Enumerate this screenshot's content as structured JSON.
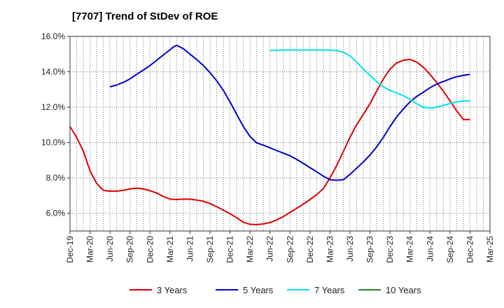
{
  "chart_data": {
    "type": "line",
    "title": "[7707]  Trend of StDev of ROE",
    "xlabel": "",
    "ylabel": "",
    "x_tick_labels": [
      "Dec-19",
      "Mar-20",
      "Jun-20",
      "Sep-20",
      "Dec-20",
      "Mar-21",
      "Jun-21",
      "Sep-21",
      "Dec-21",
      "Mar-22",
      "Jun-22",
      "Sep-22",
      "Dec-22",
      "Mar-23",
      "Jun-23",
      "Sep-23",
      "Dec-23",
      "Mar-24",
      "Jun-24",
      "Sep-24",
      "Dec-24",
      "Mar-25"
    ],
    "y_tick_labels": [
      "6.0%",
      "8.0%",
      "10.0%",
      "12.0%",
      "14.0%",
      "16.0%"
    ],
    "y_ticks": [
      6,
      8,
      10,
      12,
      14,
      16
    ],
    "ylim": [
      5,
      16
    ],
    "x_range": [
      0,
      21
    ],
    "grid": true,
    "legend_position": "bottom",
    "series": [
      {
        "name": "3 Years",
        "color": "#dd0000",
        "x": [
          0,
          0.33,
          0.67,
          1,
          1.33,
          1.67,
          2,
          2.33,
          2.67,
          3,
          3.33,
          3.67,
          4,
          4.33,
          4.67,
          5,
          5.33,
          5.67,
          6,
          6.33,
          6.67,
          7,
          7.33,
          7.67,
          8,
          8.33,
          8.67,
          9,
          9.33,
          9.67,
          10,
          10.33,
          10.67,
          11,
          11.33,
          11.67,
          12,
          12.33,
          12.67,
          13,
          13.33,
          13.67,
          14,
          14.33,
          14.67,
          15,
          15.33,
          15.67,
          16,
          16.33,
          16.67,
          17,
          17.33,
          17.67,
          18,
          18.33,
          18.67,
          19,
          19.33,
          19.67,
          20
        ],
        "values": [
          10.9,
          10.3,
          9.5,
          8.4,
          7.7,
          7.3,
          7.25,
          7.25,
          7.3,
          7.38,
          7.42,
          7.38,
          7.28,
          7.15,
          6.95,
          6.8,
          6.78,
          6.8,
          6.8,
          6.75,
          6.68,
          6.55,
          6.38,
          6.18,
          5.98,
          5.75,
          5.5,
          5.38,
          5.36,
          5.4,
          5.48,
          5.62,
          5.82,
          6.05,
          6.28,
          6.52,
          6.78,
          7.05,
          7.4,
          8.0,
          8.7,
          9.5,
          10.3,
          11.0,
          11.6,
          12.2,
          12.9,
          13.6,
          14.15,
          14.5,
          14.65,
          14.7,
          14.55,
          14.25,
          13.85,
          13.4,
          12.9,
          12.35,
          11.8,
          11.3,
          11.3
        ]
      },
      {
        "name": "5 Years",
        "color": "#0000cc",
        "x": [
          2,
          2.33,
          2.67,
          3,
          3.33,
          3.67,
          4,
          4.33,
          4.67,
          5,
          5.17,
          5.33,
          5.67,
          6,
          6.33,
          6.67,
          7,
          7.33,
          7.67,
          8,
          8.33,
          8.67,
          9,
          9.33,
          9.67,
          10,
          10.33,
          10.67,
          11,
          11.33,
          11.67,
          12,
          12.33,
          12.67,
          13,
          13.33,
          13.67,
          14,
          14.33,
          14.67,
          15,
          15.33,
          15.67,
          16,
          16.33,
          16.67,
          17,
          17.33,
          17.67,
          18,
          18.33,
          18.67,
          19,
          19.33,
          19.67,
          20
        ],
        "values": [
          13.15,
          13.25,
          13.4,
          13.6,
          13.85,
          14.1,
          14.35,
          14.65,
          14.95,
          15.25,
          15.4,
          15.5,
          15.3,
          15.0,
          14.7,
          14.35,
          13.95,
          13.5,
          12.95,
          12.3,
          11.6,
          10.9,
          10.35,
          9.98,
          9.85,
          9.7,
          9.55,
          9.4,
          9.25,
          9.05,
          8.82,
          8.58,
          8.35,
          8.1,
          7.9,
          7.87,
          7.9,
          8.2,
          8.55,
          8.9,
          9.3,
          9.75,
          10.3,
          10.9,
          11.45,
          11.9,
          12.3,
          12.6,
          12.85,
          13.1,
          13.3,
          13.45,
          13.6,
          13.72,
          13.8,
          13.85
        ]
      },
      {
        "name": "7 Years",
        "color": "#00e5ee",
        "x": [
          10,
          10.33,
          10.67,
          11,
          11.33,
          11.67,
          12,
          12.33,
          12.67,
          13,
          13.33,
          13.67,
          14,
          14.33,
          14.67,
          15,
          15.33,
          15.67,
          16,
          16.33,
          16.67,
          17,
          17.33,
          17.67,
          18,
          18.33,
          18.67,
          19,
          19.33,
          19.67,
          20
        ],
        "values": [
          15.2,
          15.22,
          15.23,
          15.23,
          15.23,
          15.23,
          15.23,
          15.23,
          15.23,
          15.23,
          15.2,
          15.1,
          14.9,
          14.55,
          14.15,
          13.8,
          13.45,
          13.15,
          12.95,
          12.8,
          12.65,
          12.45,
          12.2,
          12.0,
          11.95,
          12.0,
          12.1,
          12.2,
          12.3,
          12.35,
          12.35
        ]
      },
      {
        "name": "10 Years",
        "color": "#228b22",
        "x": [],
        "values": []
      }
    ]
  }
}
